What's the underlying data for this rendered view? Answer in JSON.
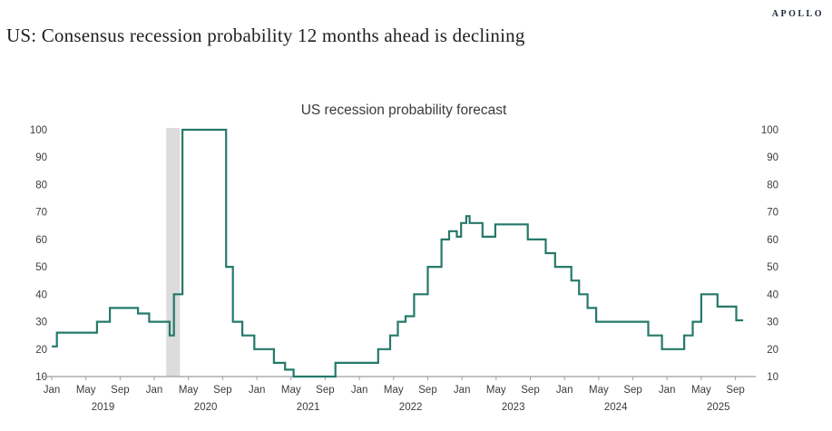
{
  "brand": {
    "logo_text": "APOLLO"
  },
  "headline": "US: Consensus recession probability 12 months ahead is declining",
  "colors": {
    "line": "#25796a",
    "recession_band": "#dcdcdc",
    "axis": "#9e9e9e",
    "tick_text": "#3c3c3c",
    "headline_text": "#1f1f1f",
    "logo_text_color": "#1e2937",
    "background": "#ffffff"
  },
  "chart_data": {
    "type": "line",
    "subtype": "step",
    "title": "US recession probability forecast",
    "xlabel": "",
    "ylabel": "",
    "ylim": [
      10,
      100
    ],
    "grid": false,
    "legend_position": "none",
    "y_ticks": [
      10,
      20,
      30,
      40,
      50,
      60,
      70,
      80,
      90,
      100
    ],
    "y_axis_sides": [
      "left",
      "right"
    ],
    "x_unit": "months since Jan 2019 (0 = Jan 2019)",
    "x_range_months": [
      0,
      82
    ],
    "x_axis": {
      "month_ticks": [
        {
          "m": 0,
          "label": "Jan"
        },
        {
          "m": 4,
          "label": "May"
        },
        {
          "m": 8,
          "label": "Sep"
        },
        {
          "m": 12,
          "label": "Jan"
        },
        {
          "m": 16,
          "label": "May"
        },
        {
          "m": 20,
          "label": "Sep"
        },
        {
          "m": 24,
          "label": "Jan"
        },
        {
          "m": 28,
          "label": "May"
        },
        {
          "m": 32,
          "label": "Sep"
        },
        {
          "m": 36,
          "label": "Jan"
        },
        {
          "m": 40,
          "label": "May"
        },
        {
          "m": 44,
          "label": "Sep"
        },
        {
          "m": 48,
          "label": "Jan"
        },
        {
          "m": 52,
          "label": "May"
        },
        {
          "m": 56,
          "label": "Sep"
        },
        {
          "m": 60,
          "label": "Jan"
        },
        {
          "m": 64,
          "label": "May"
        },
        {
          "m": 68,
          "label": "Sep"
        },
        {
          "m": 72,
          "label": "Jan"
        },
        {
          "m": 76,
          "label": "May"
        },
        {
          "m": 80,
          "label": "Sep"
        }
      ],
      "year_labels": [
        {
          "m": 6,
          "label": "2019"
        },
        {
          "m": 18,
          "label": "2020"
        },
        {
          "m": 30,
          "label": "2021"
        },
        {
          "m": 42,
          "label": "2022"
        },
        {
          "m": 54,
          "label": "2023"
        },
        {
          "m": 66,
          "label": "2024"
        },
        {
          "m": 78,
          "label": "2025"
        }
      ]
    },
    "recession_band": {
      "start_month": 13.4,
      "end_month": 15.0,
      "note": "Feb-Apr 2020 recession shading"
    },
    "series": [
      {
        "name": "US recession probability forecast",
        "style": "step-after",
        "end_month": 80.9,
        "points": [
          [
            0,
            21
          ],
          [
            0.6,
            26
          ],
          [
            5.3,
            30
          ],
          [
            6.8,
            35
          ],
          [
            10.1,
            33
          ],
          [
            11.4,
            30
          ],
          [
            13.8,
            25
          ],
          [
            14.3,
            40
          ],
          [
            15.3,
            100
          ],
          [
            20.4,
            50
          ],
          [
            21.2,
            30
          ],
          [
            22.3,
            25
          ],
          [
            23.7,
            20
          ],
          [
            26.0,
            15
          ],
          [
            27.3,
            12.5
          ],
          [
            28.3,
            10
          ],
          [
            33.2,
            15
          ],
          [
            38.2,
            20
          ],
          [
            39.6,
            25
          ],
          [
            40.5,
            30
          ],
          [
            41.4,
            32
          ],
          [
            42.4,
            40
          ],
          [
            44.0,
            50
          ],
          [
            45.6,
            60
          ],
          [
            46.5,
            63
          ],
          [
            47.4,
            61
          ],
          [
            47.9,
            66
          ],
          [
            48.5,
            68.5
          ],
          [
            48.9,
            66
          ],
          [
            50.4,
            61
          ],
          [
            51.9,
            65.5
          ],
          [
            55.7,
            60
          ],
          [
            57.8,
            55
          ],
          [
            58.9,
            50
          ],
          [
            60.8,
            45
          ],
          [
            61.7,
            40
          ],
          [
            62.7,
            35
          ],
          [
            63.7,
            30
          ],
          [
            69.8,
            25
          ],
          [
            71.4,
            20
          ],
          [
            74.0,
            25
          ],
          [
            75.0,
            30
          ],
          [
            76.0,
            40
          ],
          [
            77.9,
            35.5
          ],
          [
            80.1,
            30.5
          ]
        ]
      }
    ]
  }
}
